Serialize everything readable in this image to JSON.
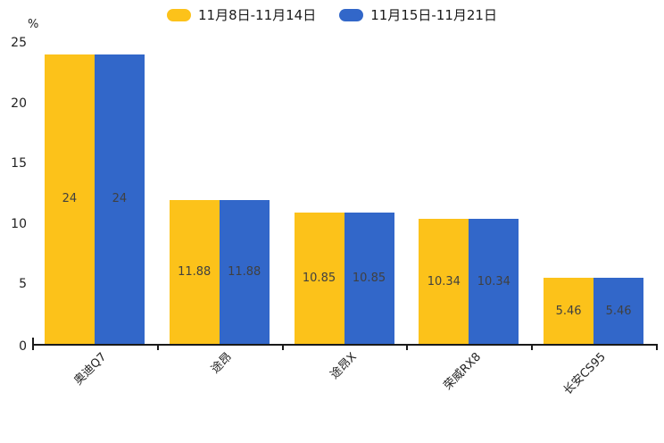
{
  "chart_data": {
    "type": "bar",
    "title": "",
    "categories": [
      "奥迪Q7",
      "途昂",
      "途昂X",
      "荣威RX8",
      "长安CS95"
    ],
    "series": [
      {
        "name": "11月8日-11月14日",
        "color": "#FCC21A",
        "values": [
          24,
          11.88,
          10.85,
          10.34,
          5.46
        ]
      },
      {
        "name": "11月15日-11月21日",
        "color": "#3267C9",
        "values": [
          24,
          11.88,
          10.85,
          10.34,
          5.46
        ]
      }
    ],
    "value_labels": [
      "24",
      "11.88",
      "10.85",
      "10.34",
      "5.46"
    ],
    "xlabel": "",
    "ylabel": "%",
    "ylim": [
      0,
      25
    ],
    "yticks": [
      0,
      5,
      10,
      15,
      20,
      25
    ],
    "grid": false,
    "legend_position": "top",
    "bar_label_color": "#404040",
    "axis_color": "#1a1a1a",
    "x_label_rotation": 45
  }
}
